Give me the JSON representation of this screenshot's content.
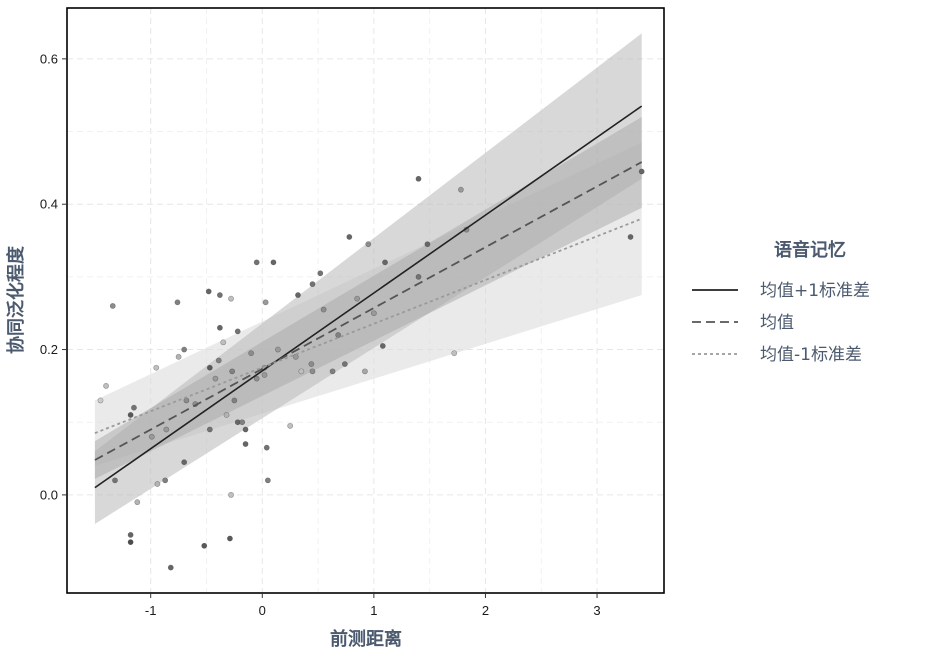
{
  "chart_data": {
    "type": "scatter",
    "xlabel": "前测距离",
    "ylabel": "协同泛化程度",
    "xlim": [
      -1.75,
      3.6
    ],
    "ylim": [
      -0.135,
      0.67
    ],
    "x_ticks": [
      -1,
      0,
      1,
      2,
      3
    ],
    "y_ticks": [
      0.0,
      0.2,
      0.4,
      0.6
    ],
    "x_tick_labels": [
      "-1",
      "0",
      "1",
      "2",
      "3"
    ],
    "y_tick_labels": [
      "0.0",
      "0.2",
      "0.4",
      "0.6"
    ],
    "grid": true,
    "legend": {
      "title": "语音记忆",
      "position": "right",
      "entries": [
        {
          "label": "均值+1标准差",
          "line_style": "solid",
          "color": "#222222"
        },
        {
          "label": "均值",
          "line_style": "dashed",
          "color": "#555555"
        },
        {
          "label": "均值-1标准差",
          "line_style": "dotted",
          "color": "#9a9a9a"
        }
      ]
    },
    "series": [
      {
        "name": "均值+1标准差",
        "line_style": "solid",
        "color": "#222222",
        "band_color": "#b8b8b8",
        "x": [
          -1.5,
          3.4
        ],
        "y": [
          0.01,
          0.535
        ],
        "lower": [
          -0.04,
          0.435
        ],
        "upper": [
          0.06,
          0.635
        ]
      },
      {
        "name": "均值",
        "line_style": "dashed",
        "color": "#555555",
        "band_color": "#a8a8a8",
        "x": [
          -1.5,
          3.4
        ],
        "y": [
          0.048,
          0.458
        ],
        "lower": [
          0.022,
          0.395
        ],
        "upper": [
          0.074,
          0.52
        ]
      },
      {
        "name": "均值-1标准差",
        "line_style": "dotted",
        "color": "#9a9a9a",
        "band_color": "#dcdcdc",
        "x": [
          -1.5,
          3.4
        ],
        "y": [
          0.085,
          0.38
        ],
        "lower": [
          0.04,
          0.275
        ],
        "upper": [
          0.13,
          0.485
        ]
      }
    ],
    "points": [
      {
        "x": -1.34,
        "y": 0.26,
        "shade": 0.55
      },
      {
        "x": -1.4,
        "y": 0.15,
        "shade": 0.75
      },
      {
        "x": -1.45,
        "y": 0.13,
        "shade": 0.8
      },
      {
        "x": -1.15,
        "y": 0.12,
        "shade": 0.45
      },
      {
        "x": -1.18,
        "y": 0.11,
        "shade": 0.35
      },
      {
        "x": -1.32,
        "y": 0.02,
        "shade": 0.45
      },
      {
        "x": -1.12,
        "y": -0.01,
        "shade": 0.7
      },
      {
        "x": -1.18,
        "y": -0.055,
        "shade": 0.4
      },
      {
        "x": -1.18,
        "y": -0.065,
        "shade": 0.3
      },
      {
        "x": -0.99,
        "y": 0.08,
        "shade": 0.6
      },
      {
        "x": -0.95,
        "y": 0.175,
        "shade": 0.75
      },
      {
        "x": -0.94,
        "y": 0.015,
        "shade": 0.7
      },
      {
        "x": -0.86,
        "y": 0.09,
        "shade": 0.6
      },
      {
        "x": -0.87,
        "y": 0.02,
        "shade": 0.5
      },
      {
        "x": -0.82,
        "y": -0.1,
        "shade": 0.4
      },
      {
        "x": -0.76,
        "y": 0.265,
        "shade": 0.5
      },
      {
        "x": -0.75,
        "y": 0.19,
        "shade": 0.7
      },
      {
        "x": -0.7,
        "y": 0.2,
        "shade": 0.5
      },
      {
        "x": -0.68,
        "y": 0.13,
        "shade": 0.55
      },
      {
        "x": -0.7,
        "y": 0.045,
        "shade": 0.4
      },
      {
        "x": -0.6,
        "y": 0.125,
        "shade": 0.55
      },
      {
        "x": -0.52,
        "y": -0.07,
        "shade": 0.35
      },
      {
        "x": -0.48,
        "y": 0.28,
        "shade": 0.4
      },
      {
        "x": -0.47,
        "y": 0.175,
        "shade": 0.35
      },
      {
        "x": -0.47,
        "y": 0.09,
        "shade": 0.45
      },
      {
        "x": -0.42,
        "y": 0.16,
        "shade": 0.6
      },
      {
        "x": -0.39,
        "y": 0.185,
        "shade": 0.5
      },
      {
        "x": -0.38,
        "y": 0.275,
        "shade": 0.45
      },
      {
        "x": -0.38,
        "y": 0.23,
        "shade": 0.4
      },
      {
        "x": -0.35,
        "y": 0.21,
        "shade": 0.75
      },
      {
        "x": -0.32,
        "y": 0.11,
        "shade": 0.7
      },
      {
        "x": -0.28,
        "y": 0.27,
        "shade": 0.75
      },
      {
        "x": -0.27,
        "y": 0.17,
        "shade": 0.5
      },
      {
        "x": -0.25,
        "y": 0.13,
        "shade": 0.5
      },
      {
        "x": -0.28,
        "y": 0.0,
        "shade": 0.75
      },
      {
        "x": -0.29,
        "y": -0.06,
        "shade": 0.35
      },
      {
        "x": -0.22,
        "y": 0.225,
        "shade": 0.45
      },
      {
        "x": -0.22,
        "y": 0.1,
        "shade": 0.4
      },
      {
        "x": -0.18,
        "y": 0.1,
        "shade": 0.5
      },
      {
        "x": -0.15,
        "y": 0.09,
        "shade": 0.4
      },
      {
        "x": -0.15,
        "y": 0.07,
        "shade": 0.4
      },
      {
        "x": -0.1,
        "y": 0.195,
        "shade": 0.55
      },
      {
        "x": -0.05,
        "y": 0.32,
        "shade": 0.45
      },
      {
        "x": -0.05,
        "y": 0.16,
        "shade": 0.55
      },
      {
        "x": 0.02,
        "y": 0.175,
        "shade": 0.65
      },
      {
        "x": 0.02,
        "y": 0.165,
        "shade": 0.6
      },
      {
        "x": 0.03,
        "y": 0.265,
        "shade": 0.6
      },
      {
        "x": 0.04,
        "y": 0.065,
        "shade": 0.45
      },
      {
        "x": 0.05,
        "y": 0.02,
        "shade": 0.5
      },
      {
        "x": 0.1,
        "y": 0.32,
        "shade": 0.4
      },
      {
        "x": 0.14,
        "y": 0.2,
        "shade": 0.6
      },
      {
        "x": 0.25,
        "y": 0.095,
        "shade": 0.75
      },
      {
        "x": 0.3,
        "y": 0.19,
        "shade": 0.6
      },
      {
        "x": 0.32,
        "y": 0.275,
        "shade": 0.4
      },
      {
        "x": 0.35,
        "y": 0.17,
        "shade": 0.75
      },
      {
        "x": 0.44,
        "y": 0.18,
        "shade": 0.55
      },
      {
        "x": 0.45,
        "y": 0.17,
        "shade": 0.55
      },
      {
        "x": 0.45,
        "y": 0.29,
        "shade": 0.45
      },
      {
        "x": 0.52,
        "y": 0.305,
        "shade": 0.45
      },
      {
        "x": 0.55,
        "y": 0.255,
        "shade": 0.55
      },
      {
        "x": 0.63,
        "y": 0.17,
        "shade": 0.5
      },
      {
        "x": 0.68,
        "y": 0.22,
        "shade": 0.5
      },
      {
        "x": 0.74,
        "y": 0.18,
        "shade": 0.45
      },
      {
        "x": 0.78,
        "y": 0.355,
        "shade": 0.4
      },
      {
        "x": 0.85,
        "y": 0.27,
        "shade": 0.6
      },
      {
        "x": 0.92,
        "y": 0.17,
        "shade": 0.65
      },
      {
        "x": 0.95,
        "y": 0.345,
        "shade": 0.55
      },
      {
        "x": 1.0,
        "y": 0.25,
        "shade": 0.6
      },
      {
        "x": 1.08,
        "y": 0.205,
        "shade": 0.4
      },
      {
        "x": 1.1,
        "y": 0.32,
        "shade": 0.4
      },
      {
        "x": 1.4,
        "y": 0.3,
        "shade": 0.45
      },
      {
        "x": 1.4,
        "y": 0.435,
        "shade": 0.4
      },
      {
        "x": 1.48,
        "y": 0.345,
        "shade": 0.4
      },
      {
        "x": 1.72,
        "y": 0.195,
        "shade": 0.75
      },
      {
        "x": 1.78,
        "y": 0.42,
        "shade": 0.6
      },
      {
        "x": 1.83,
        "y": 0.365,
        "shade": 0.55
      },
      {
        "x": 3.3,
        "y": 0.355,
        "shade": 0.4
      },
      {
        "x": 3.4,
        "y": 0.445,
        "shade": 0.4
      }
    ]
  }
}
